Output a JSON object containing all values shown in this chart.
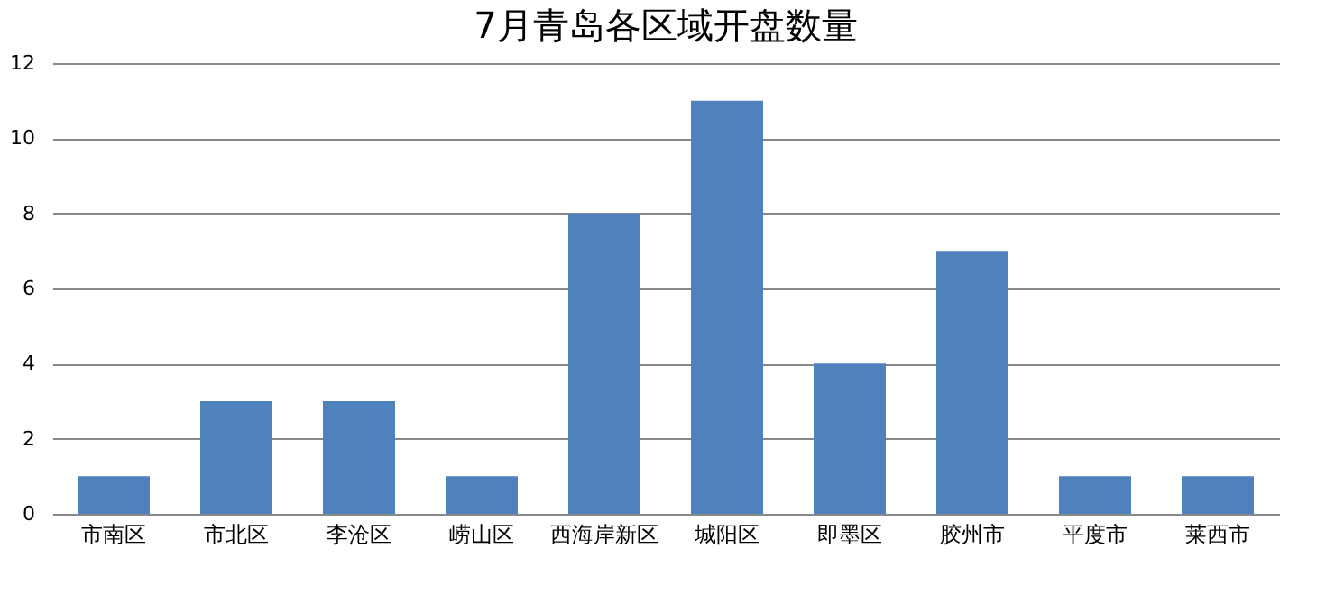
{
  "chart_data": {
    "type": "bar",
    "title": "7月青岛各区域开盘数量",
    "categories": [
      "市南区",
      "市北区",
      "李沧区",
      "崂山区",
      "西海岸新区",
      "城阳区",
      "即墨区",
      "胶州市",
      "平度市",
      "莱西市"
    ],
    "values": [
      1,
      3,
      3,
      1,
      8,
      11,
      4,
      7,
      1,
      1
    ],
    "color": "#4f81bd",
    "ylim": [
      0,
      12
    ],
    "yticks": [
      0,
      2,
      4,
      6,
      8,
      10,
      12
    ],
    "grid": "y"
  }
}
